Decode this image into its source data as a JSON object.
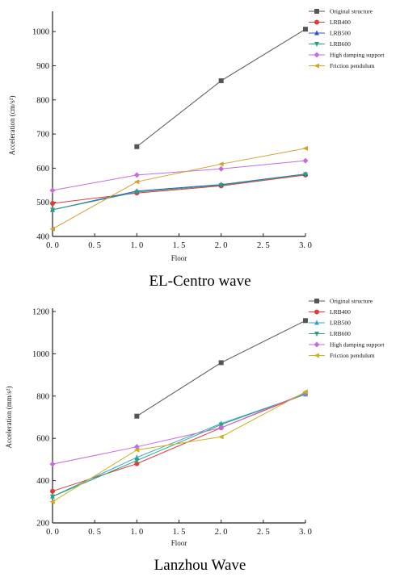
{
  "chart_data": [
    {
      "type": "line",
      "caption": "EL-Centro wave",
      "xlabel": "Floor",
      "ylabel": "Acceleration (cm/s²)",
      "xlim": [
        0,
        3
      ],
      "ylim": [
        400,
        1050
      ],
      "xticks": [
        "0. 0",
        "0. 5",
        "1. 0",
        "1. 5",
        "2. 0",
        "2. 5",
        "3. 0"
      ],
      "yticks": [
        "400",
        "500",
        "600",
        "700",
        "800",
        "900",
        "1000"
      ],
      "grid": false,
      "legend": "top-right",
      "series": [
        {
          "name": "Original structure",
          "color": "#555555",
          "marker": "square",
          "points": [
            [
              1,
              663
            ],
            [
              2,
              856
            ],
            [
              3,
              1007
            ]
          ]
        },
        {
          "name": "LRB400",
          "color": "#e03a3a",
          "marker": "circle",
          "points": [
            [
              0,
              497
            ],
            [
              1,
              527
            ],
            [
              2,
              548
            ],
            [
              3,
              580
            ]
          ]
        },
        {
          "name": "LRB500",
          "color": "#2a52c9",
          "marker": "triangle-up",
          "points": [
            [
              0,
              478
            ],
            [
              1,
              533
            ],
            [
              2,
              552
            ],
            [
              3,
              583
            ]
          ]
        },
        {
          "name": "LRB600",
          "color": "#2aa37a",
          "marker": "triangle-down",
          "points": [
            [
              0,
              478
            ],
            [
              1,
              530
            ],
            [
              2,
              550
            ],
            [
              3,
              582
            ]
          ]
        },
        {
          "name": "High damping support",
          "color": "#c46be0",
          "marker": "diamond",
          "points": [
            [
              0,
              535
            ],
            [
              1,
              580
            ],
            [
              2,
              598
            ],
            [
              3,
              622
            ]
          ]
        },
        {
          "name": "Friction pendulum",
          "color": "#d4a02a",
          "marker": "triangle-left",
          "points": [
            [
              0,
              422
            ],
            [
              1,
              560
            ],
            [
              2,
              612
            ],
            [
              3,
              658
            ]
          ]
        }
      ]
    },
    {
      "type": "line",
      "caption": "Lanzhou Wave",
      "xlabel": "Floor",
      "ylabel": "Acceleration (mm/s²)",
      "xlim": [
        0,
        3
      ],
      "ylim": [
        200,
        1200
      ],
      "xticks": [
        "0. 0",
        "0. 5",
        "1. 0",
        "1. 5",
        "2. 0",
        "2. 5",
        "3. 0"
      ],
      "yticks": [
        "200",
        "400",
        "600",
        "800",
        "1000",
        "1200"
      ],
      "grid": false,
      "legend": "top-right",
      "series": [
        {
          "name": "Original structure",
          "color": "#555555",
          "marker": "square",
          "points": [
            [
              1,
              705
            ],
            [
              2,
              958
            ],
            [
              3,
              1157
            ]
          ]
        },
        {
          "name": "LRB400",
          "color": "#e03a3a",
          "marker": "circle",
          "points": [
            [
              0,
              350
            ],
            [
              1,
              480
            ],
            [
              2,
              650
            ],
            [
              3,
              810
            ]
          ]
        },
        {
          "name": "LRB500",
          "color": "#3aa0c9",
          "marker": "triangle-up",
          "points": [
            [
              0,
              325
            ],
            [
              1,
              510
            ],
            [
              2,
              670
            ],
            [
              3,
              808
            ]
          ]
        },
        {
          "name": "LRB600",
          "color": "#2aa37a",
          "marker": "triangle-down",
          "points": [
            [
              0,
              325
            ],
            [
              1,
              495
            ],
            [
              2,
              665
            ],
            [
              3,
              810
            ]
          ]
        },
        {
          "name": "High damping support",
          "color": "#c46be0",
          "marker": "diamond",
          "points": [
            [
              0,
              478
            ],
            [
              1,
              560
            ],
            [
              2,
              650
            ],
            [
              3,
              815
            ]
          ]
        },
        {
          "name": "Friction pendulum",
          "color": "#c9b21a",
          "marker": "triangle-left",
          "points": [
            [
              0,
              300
            ],
            [
              1,
              545
            ],
            [
              2,
              607
            ],
            [
              3,
              820
            ]
          ]
        }
      ]
    }
  ]
}
